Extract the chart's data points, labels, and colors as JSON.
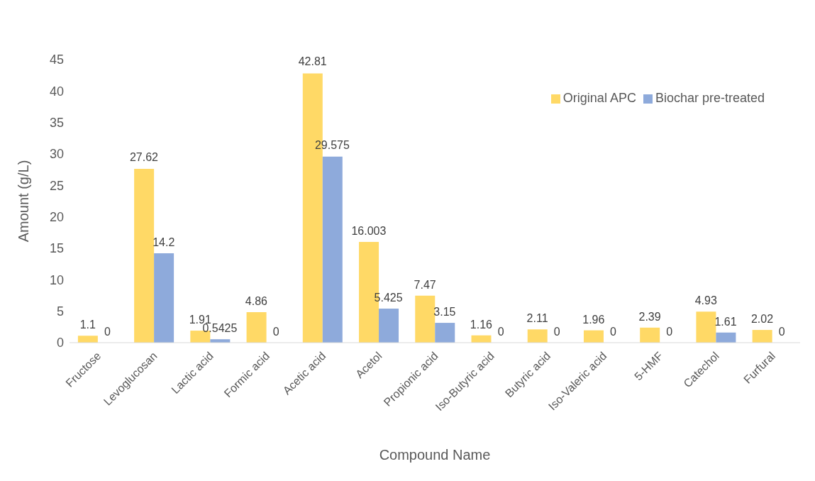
{
  "chart_data": {
    "type": "bar",
    "xlabel": "Compound Name",
    "ylabel": "Amount (g/L)",
    "categories": [
      "Fructose",
      "Levoglucosan",
      "Lactic acid",
      "Formic acid",
      "Acetic acid",
      "Acetol",
      "Propionic acid",
      "Iso-Butyric acid",
      "Butyric acid",
      "Iso-Valeric acid",
      "5-HMF",
      "Catechol",
      "Furfural"
    ],
    "series": [
      {
        "name": "Original APC",
        "color": "#ffd966",
        "values": [
          1.1,
          27.62,
          1.91,
          4.86,
          42.81,
          16.003,
          7.47,
          1.16,
          2.11,
          1.96,
          2.39,
          4.93,
          2.02
        ]
      },
      {
        "name": "Biochar pre-treated",
        "color": "#8eaadb",
        "values": [
          0,
          14.2,
          0.5425,
          0,
          29.575,
          5.425,
          3.15,
          0,
          0,
          0,
          0,
          1.61,
          0
        ]
      }
    ],
    "ylim": [
      0,
      45
    ],
    "yticks": [
      0,
      5,
      10,
      15,
      20,
      25,
      30,
      35,
      40,
      45
    ],
    "grid": false,
    "data_labels": true,
    "legend": "top right"
  }
}
